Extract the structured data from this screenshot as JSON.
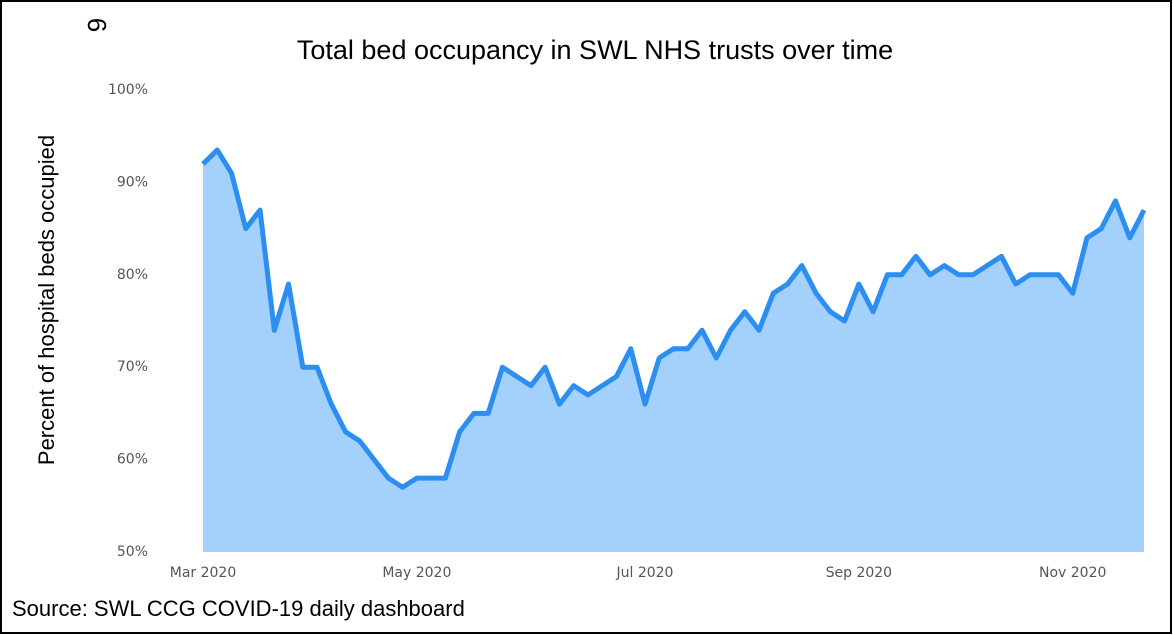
{
  "chart_data": {
    "type": "area",
    "page_number": "6",
    "title": "Total bed occupancy in SWL NHS trusts over time",
    "y_label": "Percent of hospital beds occupied",
    "source": "Source: SWL CCG COVID-19 daily dashboard",
    "categories": [
      "Mar 2020",
      null,
      null,
      null,
      null,
      null,
      null,
      null,
      null,
      null,
      null,
      null,
      null,
      null,
      null,
      "May 2020",
      null,
      null,
      null,
      null,
      null,
      null,
      null,
      null,
      null,
      null,
      null,
      null,
      null,
      null,
      null,
      "Jul 2020",
      null,
      null,
      null,
      null,
      null,
      null,
      null,
      null,
      null,
      null,
      null,
      null,
      null,
      null,
      "Sep 2020",
      null,
      null,
      null,
      null,
      null,
      null,
      null,
      null,
      null,
      null,
      null,
      null,
      null,
      null,
      "Nov 2020",
      null,
      null,
      null,
      null,
      null
    ],
    "series": [
      {
        "name": "Bed occupancy",
        "color": "#2b8ef0",
        "fill": "#a3d1fb",
        "values": [
          92,
          93.5,
          91,
          85,
          87,
          74,
          79,
          70,
          70,
          66,
          63,
          62,
          60,
          58,
          57,
          58,
          58,
          58,
          63,
          65,
          65,
          70,
          69,
          68,
          70,
          66,
          68,
          67,
          68,
          69,
          72,
          66,
          71,
          72,
          72,
          74,
          71,
          74,
          76,
          74,
          78,
          79,
          81,
          78,
          76,
          75,
          79,
          76,
          80,
          80,
          82,
          80,
          81,
          80,
          80,
          81,
          82,
          79,
          80,
          80,
          80,
          78,
          84,
          85,
          88,
          84,
          87
        ]
      }
    ],
    "ylim": [
      50,
      100
    ],
    "yticks": [
      {
        "value": 50,
        "label": "50%"
      },
      {
        "value": 60,
        "label": "60%"
      },
      {
        "value": 70,
        "label": "70%"
      },
      {
        "value": 80,
        "label": "80%"
      },
      {
        "value": 90,
        "label": "90%"
      },
      {
        "value": 100,
        "label": "100%"
      }
    ]
  }
}
